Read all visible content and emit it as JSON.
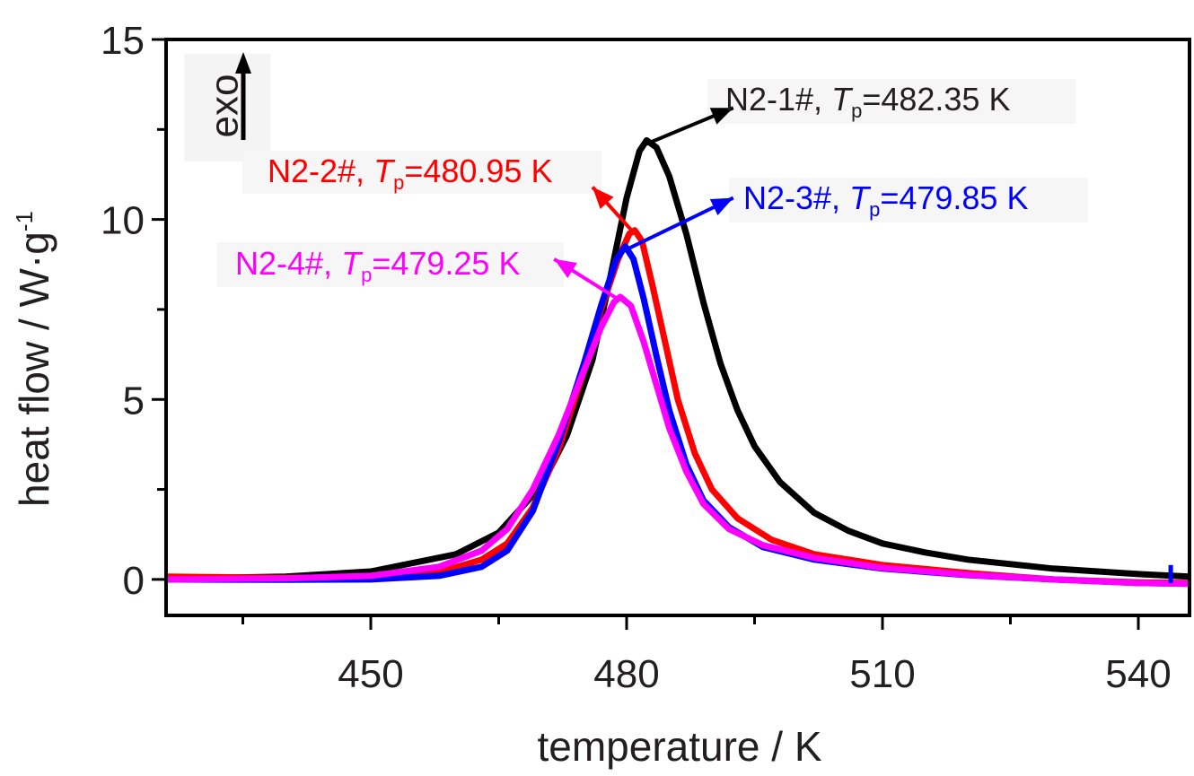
{
  "chart_data": {
    "type": "line",
    "xlabel": "temperature / K",
    "ylabel": "heat flow / W·g",
    "ylabel_superscript": "-1",
    "xlim": [
      426,
      546
    ],
    "ylim": [
      -1,
      15
    ],
    "xticks": [
      450,
      480,
      510,
      540
    ],
    "xtick_labels": [
      "450",
      "480",
      "510",
      "540"
    ],
    "yticks": [
      0,
      5,
      10,
      15
    ],
    "ytick_labels": [
      "0",
      "5",
      "10",
      "15"
    ],
    "grid": false,
    "exo_label": "exo",
    "series": [
      {
        "name": "N2-1#",
        "label_prefix": "N2-1#, ",
        "tp_symbol": "T",
        "tp_subscript": "p",
        "tp_value": "=482.35 K",
        "color": "#000000",
        "peak_x": 482.35,
        "peak_y": 12.2,
        "label_anchor": [
          492.5,
          13.1
        ],
        "points": [
          [
            426,
            0.02
          ],
          [
            440,
            0.08
          ],
          [
            450,
            0.22
          ],
          [
            460,
            0.7
          ],
          [
            465,
            1.3
          ],
          [
            470,
            2.6
          ],
          [
            473,
            4.0
          ],
          [
            476,
            6.1
          ],
          [
            478,
            8.3
          ],
          [
            480,
            10.6
          ],
          [
            481.5,
            11.9
          ],
          [
            482.35,
            12.2
          ],
          [
            483.5,
            12.0
          ],
          [
            485,
            11.2
          ],
          [
            487,
            9.6
          ],
          [
            489,
            7.7
          ],
          [
            491,
            6.0
          ],
          [
            493,
            4.7
          ],
          [
            495,
            3.7
          ],
          [
            498,
            2.7
          ],
          [
            502,
            1.85
          ],
          [
            506,
            1.35
          ],
          [
            510,
            1.0
          ],
          [
            515,
            0.75
          ],
          [
            520,
            0.55
          ],
          [
            530,
            0.3
          ],
          [
            540,
            0.15
          ],
          [
            546,
            0.08
          ]
        ]
      },
      {
        "name": "N2-2#",
        "label_prefix": "N2-2#, ",
        "tp_symbol": "T",
        "tp_subscript": "p",
        "tp_value": "=480.95 K",
        "color": "#ff0000",
        "peak_x": 480.95,
        "peak_y": 9.7,
        "label_anchor": [
          476,
          10.9
        ],
        "points": [
          [
            426,
            0.08
          ],
          [
            440,
            0.04
          ],
          [
            450,
            0.06
          ],
          [
            458,
            0.2
          ],
          [
            463,
            0.55
          ],
          [
            466,
            1.0
          ],
          [
            469,
            2.0
          ],
          [
            472,
            3.6
          ],
          [
            475,
            5.8
          ],
          [
            477,
            7.5
          ],
          [
            479,
            8.9
          ],
          [
            480.3,
            9.6
          ],
          [
            480.95,
            9.7
          ],
          [
            481.8,
            9.4
          ],
          [
            483,
            8.2
          ],
          [
            484.5,
            6.6
          ],
          [
            486,
            5.0
          ],
          [
            488,
            3.5
          ],
          [
            490,
            2.5
          ],
          [
            493,
            1.7
          ],
          [
            497,
            1.1
          ],
          [
            502,
            0.7
          ],
          [
            510,
            0.4
          ],
          [
            520,
            0.18
          ],
          [
            530,
            0.0
          ],
          [
            540,
            -0.08
          ],
          [
            546,
            -0.1
          ]
        ]
      },
      {
        "name": "N2-3#",
        "label_prefix": "N2-3#, ",
        "tp_symbol": "T",
        "tp_subscript": "p",
        "tp_value": "=479.85 K",
        "color": "#0000ff",
        "peak_x": 479.85,
        "peak_y": 9.25,
        "label_anchor": [
          492.5,
          10.6
        ],
        "points": [
          [
            426,
            0.0
          ],
          [
            440,
            -0.01
          ],
          [
            450,
            0.0
          ],
          [
            458,
            0.1
          ],
          [
            463,
            0.35
          ],
          [
            466,
            0.8
          ],
          [
            469,
            1.9
          ],
          [
            472,
            3.8
          ],
          [
            475,
            6.0
          ],
          [
            477,
            7.6
          ],
          [
            478.8,
            8.9
          ],
          [
            479.85,
            9.25
          ],
          [
            480.8,
            8.9
          ],
          [
            482,
            7.8
          ],
          [
            483.5,
            6.2
          ],
          [
            485,
            4.7
          ],
          [
            487,
            3.2
          ],
          [
            489,
            2.2
          ],
          [
            492,
            1.45
          ],
          [
            496,
            0.9
          ],
          [
            502,
            0.55
          ],
          [
            510,
            0.3
          ],
          [
            520,
            0.12
          ],
          [
            530,
            0.0
          ],
          [
            540,
            -0.1
          ],
          [
            546,
            -0.12
          ]
        ]
      },
      {
        "name": "N2-4#",
        "label_prefix": "N2-4#, ",
        "tp_symbol": "T",
        "tp_subscript": "p",
        "tp_value": "=479.25 K",
        "color": "#ff00ff",
        "peak_x": 479.25,
        "peak_y": 7.85,
        "label_anchor": [
          471.5,
          8.9
        ],
        "points": [
          [
            426,
            0.0
          ],
          [
            440,
            0.03
          ],
          [
            450,
            0.1
          ],
          [
            458,
            0.35
          ],
          [
            463,
            0.8
          ],
          [
            466,
            1.4
          ],
          [
            469,
            2.5
          ],
          [
            472,
            4.0
          ],
          [
            475,
            5.8
          ],
          [
            477,
            7.0
          ],
          [
            478.5,
            7.7
          ],
          [
            479.25,
            7.85
          ],
          [
            480.5,
            7.6
          ],
          [
            482,
            6.6
          ],
          [
            483.5,
            5.4
          ],
          [
            485,
            4.2
          ],
          [
            487,
            3.0
          ],
          [
            489,
            2.1
          ],
          [
            492,
            1.4
          ],
          [
            496,
            0.95
          ],
          [
            502,
            0.6
          ],
          [
            510,
            0.32
          ],
          [
            520,
            0.13
          ],
          [
            530,
            0.0
          ],
          [
            540,
            -0.1
          ],
          [
            546,
            -0.12
          ]
        ]
      }
    ]
  }
}
